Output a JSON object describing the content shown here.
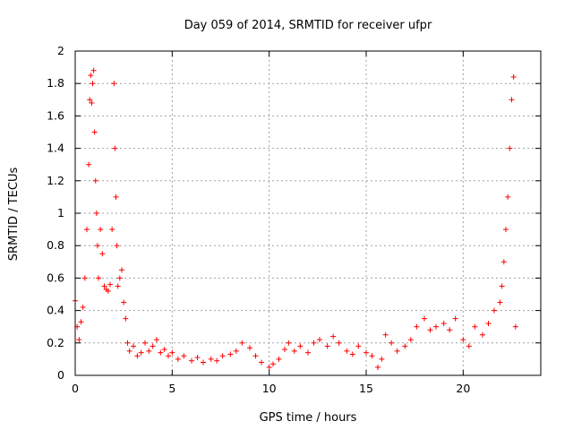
{
  "chart_data": {
    "type": "scatter",
    "title": "Day 059 of 2014, SRMTID for receiver ufpr",
    "xlabel": "GPS time / hours",
    "ylabel": "SRMTID / TECUs",
    "xlim": [
      0,
      24
    ],
    "ylim": [
      0,
      2
    ],
    "xticks": [
      0,
      5,
      10,
      15,
      20
    ],
    "xtick_labels": [
      "0",
      "5",
      "10",
      "15",
      "20"
    ],
    "yticks": [
      0,
      0.2,
      0.4,
      0.6,
      0.8,
      1,
      1.2,
      1.4,
      1.6,
      1.8,
      2
    ],
    "ytick_labels": [
      "0",
      "0.2",
      "0.4",
      "0.6",
      "0.8",
      "1",
      "1.2",
      "1.4",
      "1.6",
      "1.8",
      "2"
    ],
    "grid": true,
    "marker": "+",
    "marker_color": "#ff0000",
    "series": [
      {
        "name": "SRMTID",
        "color": "#ff0000",
        "x": [
          0.0,
          0.1,
          0.2,
          0.3,
          0.4,
          0.5,
          0.6,
          0.7,
          0.75,
          0.8,
          0.85,
          0.9,
          0.95,
          1.0,
          1.05,
          1.1,
          1.15,
          1.2,
          1.3,
          1.4,
          1.5,
          1.6,
          1.7,
          1.8,
          1.9,
          2.0,
          2.05,
          2.1,
          2.15,
          2.2,
          2.3,
          2.4,
          2.5,
          2.6,
          2.7,
          2.8,
          3.0,
          3.2,
          3.4,
          3.6,
          3.8,
          4.0,
          4.2,
          4.4,
          4.6,
          4.8,
          5.0,
          5.3,
          5.6,
          6.0,
          6.3,
          6.6,
          7.0,
          7.3,
          7.6,
          8.0,
          8.3,
          8.6,
          9.0,
          9.3,
          9.6,
          10.0,
          10.2,
          10.5,
          10.8,
          11.0,
          11.3,
          11.6,
          12.0,
          12.3,
          12.6,
          13.0,
          13.3,
          13.6,
          14.0,
          14.3,
          14.6,
          15.0,
          15.3,
          15.6,
          15.8,
          16.0,
          16.3,
          16.6,
          17.0,
          17.3,
          17.6,
          18.0,
          18.3,
          18.6,
          19.0,
          19.3,
          19.6,
          20.0,
          20.3,
          20.6,
          21.0,
          21.3,
          21.6,
          21.9,
          22.0,
          22.1,
          22.2,
          22.3,
          22.4,
          22.5,
          22.6,
          22.7
        ],
        "y": [
          0.46,
          0.3,
          0.22,
          0.33,
          0.42,
          0.6,
          0.9,
          1.3,
          1.7,
          1.85,
          1.68,
          1.8,
          1.88,
          1.5,
          1.2,
          1.0,
          0.8,
          0.6,
          0.9,
          0.75,
          0.55,
          0.53,
          0.52,
          0.56,
          0.9,
          1.8,
          1.4,
          1.1,
          0.8,
          0.55,
          0.6,
          0.65,
          0.45,
          0.35,
          0.2,
          0.15,
          0.18,
          0.12,
          0.14,
          0.2,
          0.15,
          0.18,
          0.22,
          0.14,
          0.16,
          0.12,
          0.14,
          0.1,
          0.12,
          0.09,
          0.11,
          0.08,
          0.1,
          0.09,
          0.12,
          0.13,
          0.15,
          0.2,
          0.17,
          0.12,
          0.08,
          0.05,
          0.07,
          0.1,
          0.16,
          0.2,
          0.15,
          0.18,
          0.14,
          0.2,
          0.22,
          0.18,
          0.24,
          0.2,
          0.15,
          0.13,
          0.18,
          0.14,
          0.12,
          0.05,
          0.1,
          0.25,
          0.2,
          0.15,
          0.18,
          0.22,
          0.3,
          0.35,
          0.28,
          0.3,
          0.32,
          0.28,
          0.35,
          0.22,
          0.18,
          0.3,
          0.25,
          0.32,
          0.4,
          0.45,
          0.55,
          0.7,
          0.9,
          1.1,
          1.4,
          1.7,
          1.84,
          0.3
        ]
      }
    ]
  }
}
